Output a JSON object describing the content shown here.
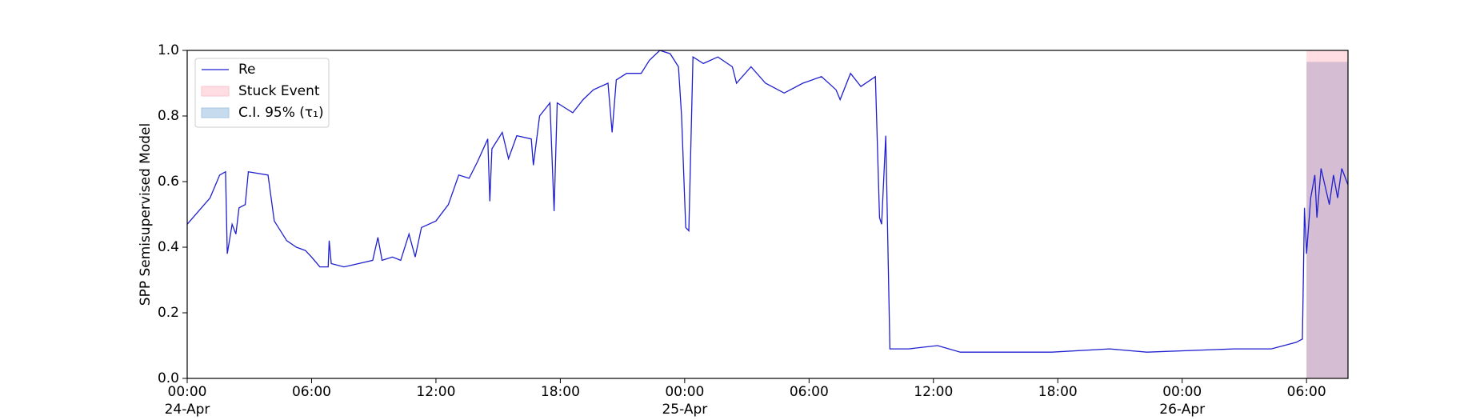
{
  "chart_data": {
    "type": "line",
    "ylabel": "SPP Semisupervised Model",
    "xlim": [
      "1900-04-24 00:00",
      "1900-04-26 08:00"
    ],
    "ylim": [
      0,
      1
    ],
    "yticks": [
      {
        "value": 0,
        "label": "0.0"
      },
      0.2,
      0.4,
      0.6,
      0.8,
      {
        "value": 1,
        "label": "1.0"
      }
    ],
    "xticks": [
      {
        "value": "1900-04-24 00:00",
        "label": "00:00\n24-Apr\n1900"
      },
      {
        "value": "1900-04-24 06:00",
        "label": "06:00"
      },
      {
        "value": "1900-04-24 12:00",
        "label": "12:00"
      },
      {
        "value": "1900-04-24 18:00",
        "label": "18:00"
      },
      {
        "value": "1900-04-25 00:00",
        "label": "00:00\n25-Apr"
      },
      {
        "value": "1900-04-25 06:00",
        "label": "06:00"
      },
      {
        "value": "1900-04-25 12:00",
        "label": "12:00"
      },
      {
        "value": "1900-04-25 18:00",
        "label": "18:00"
      },
      {
        "value": "1900-04-26 00:00",
        "label": "00:00\n26-Apr"
      },
      {
        "value": "1900-04-26 06:00",
        "label": "06:00"
      }
    ],
    "legend": "upper left",
    "spans": [
      {
        "name": "Stuck Event",
        "color": "#ffdde2",
        "x": [
          "1900-04-26 06:00",
          "1900-04-26 08:00"
        ],
        "y": [
          0,
          1
        ]
      },
      {
        "name": "C.I. 95% (τ₁)",
        "color": "#b9a9c9",
        "x": [
          "1900-04-26 06:00",
          "1900-04-26 08:00"
        ],
        "y": [
          0,
          0.965
        ]
      }
    ],
    "series": [
      {
        "name": "Re",
        "color": "#1f1fd0",
        "x": [
          "1900-04-24 00:00",
          "1900-04-24 01:06",
          "1900-04-24 01:34",
          "1900-04-24 01:51",
          "1900-04-24 01:56",
          "1900-04-24 02:10",
          "1900-04-24 02:21",
          "1900-04-24 02:30",
          "1900-04-24 02:48",
          "1900-04-24 02:57",
          "1900-04-24 03:54",
          "1900-04-24 04:12",
          "1900-04-24 04:48",
          "1900-04-24 05:16",
          "1900-04-24 05:42",
          "1900-04-24 06:00",
          "1900-04-24 06:24",
          "1900-04-24 06:48",
          "1900-04-24 06:51",
          "1900-04-24 06:57",
          "1900-04-24 07:34",
          "1900-04-24 08:16",
          "1900-04-24 08:57",
          "1900-04-24 09:12",
          "1900-04-24 09:24",
          "1900-04-24 09:54",
          "1900-04-24 10:18",
          "1900-04-24 10:42",
          "1900-04-24 11:00",
          "1900-04-24 11:18",
          "1900-04-24 12:00",
          "1900-04-24 12:36",
          "1900-04-24 13:06",
          "1900-04-24 13:36",
          "1900-04-24 14:00",
          "1900-04-24 14:30",
          "1900-04-24 14:36",
          "1900-04-24 14:42",
          "1900-04-24 15:12",
          "1900-04-24 15:30",
          "1900-04-24 15:54",
          "1900-04-24 16:36",
          "1900-04-24 16:42",
          "1900-04-24 17:00",
          "1900-04-24 17:30",
          "1900-04-24 17:42",
          "1900-04-24 17:51",
          "1900-04-24 18:36",
          "1900-04-24 19:06",
          "1900-04-24 19:36",
          "1900-04-24 20:18",
          "1900-04-24 20:30",
          "1900-04-24 20:42",
          "1900-04-24 21:12",
          "1900-04-24 21:54",
          "1900-04-24 22:18",
          "1900-04-24 22:48",
          "1900-04-24 23:18",
          "1900-04-24 23:42",
          "1900-04-24 23:51",
          "1900-04-25 00:03",
          "1900-04-25 00:12",
          "1900-04-25 00:24",
          "1900-04-25 00:54",
          "1900-04-25 01:36",
          "1900-04-25 02:18",
          "1900-04-25 02:30",
          "1900-04-25 03:12",
          "1900-04-25 03:54",
          "1900-04-25 04:48",
          "1900-04-25 05:42",
          "1900-04-25 06:36",
          "1900-04-25 07:18",
          "1900-04-25 07:30",
          "1900-04-25 08:00",
          "1900-04-25 08:30",
          "1900-04-25 09:12",
          "1900-04-25 09:24",
          "1900-04-25 09:30",
          "1900-04-25 09:42",
          "1900-04-25 09:54",
          "1900-04-25 10:48",
          "1900-04-25 12:12",
          "1900-04-25 13:18",
          "1900-04-25 15:24",
          "1900-04-25 17:42",
          "1900-04-25 20:30",
          "1900-04-25 22:18",
          "1900-04-26 02:30",
          "1900-04-26 04:18",
          "1900-04-26 05:30",
          "1900-04-26 05:48",
          "1900-04-26 05:54",
          "1900-04-26 06:00",
          "1900-04-26 06:12",
          "1900-04-26 06:24",
          "1900-04-26 06:30",
          "1900-04-26 06:42",
          "1900-04-26 07:06",
          "1900-04-26 07:18",
          "1900-04-26 07:30",
          "1900-04-26 07:42",
          "1900-04-26 08:00"
        ],
        "values": [
          0.47,
          0.55,
          0.62,
          0.63,
          0.38,
          0.47,
          0.44,
          0.52,
          0.53,
          0.63,
          0.62,
          0.48,
          0.42,
          0.4,
          0.39,
          0.37,
          0.34,
          0.34,
          0.42,
          0.35,
          0.34,
          0.35,
          0.36,
          0.43,
          0.36,
          0.37,
          0.36,
          0.44,
          0.37,
          0.46,
          0.48,
          0.53,
          0.62,
          0.61,
          0.66,
          0.73,
          0.54,
          0.7,
          0.75,
          0.67,
          0.74,
          0.73,
          0.65,
          0.8,
          0.84,
          0.51,
          0.84,
          0.81,
          0.85,
          0.88,
          0.9,
          0.75,
          0.91,
          0.93,
          0.93,
          0.97,
          1.0,
          0.99,
          0.95,
          0.8,
          0.46,
          0.45,
          0.98,
          0.96,
          0.98,
          0.95,
          0.9,
          0.95,
          0.9,
          0.87,
          0.9,
          0.92,
          0.88,
          0.85,
          0.93,
          0.89,
          0.92,
          0.49,
          0.47,
          0.74,
          0.09,
          0.09,
          0.1,
          0.08,
          0.08,
          0.08,
          0.09,
          0.08,
          0.09,
          0.09,
          0.11,
          0.12,
          0.52,
          0.38,
          0.55,
          0.62,
          0.49,
          0.64,
          0.53,
          0.62,
          0.55,
          0.64,
          0.59
        ]
      }
    ]
  }
}
